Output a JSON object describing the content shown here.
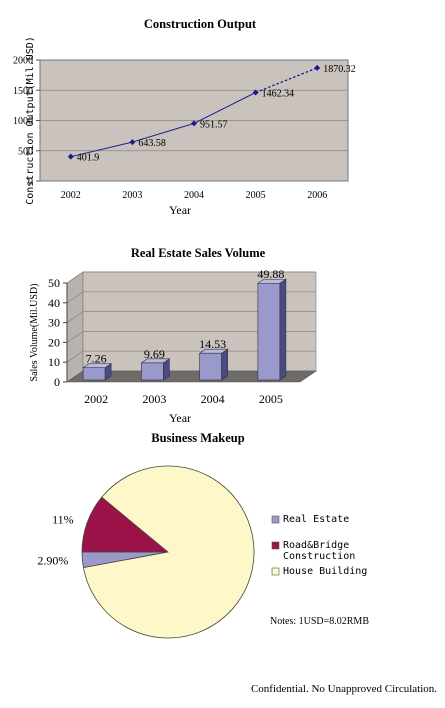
{
  "chart_data": [
    {
      "type": "line",
      "title": "Construction Output",
      "xlabel": "Year",
      "ylabel": "Construction Output(Mil.USD)",
      "categories": [
        "2002",
        "2003",
        "2004",
        "2005",
        "2006"
      ],
      "values": [
        401.9,
        643.58,
        951.57,
        1462.34,
        1870.32
      ],
      "data_labels": [
        "401.9",
        "643.58",
        "951.57",
        "1462.34",
        "1870.32"
      ],
      "y_ticks": [
        "0",
        "500",
        "1000",
        "1500",
        "2000"
      ],
      "ylim": [
        0,
        2000
      ],
      "grid": true,
      "last_segment_dashed": true,
      "line_color": "#1a1a8c",
      "plot_bg": "#c9c2bd"
    },
    {
      "type": "bar",
      "title": "Real Estate Sales Volume",
      "xlabel": "Year",
      "ylabel": "Sales Volume(Mil.USD)",
      "categories": [
        "2002",
        "2003",
        "2004",
        "2005"
      ],
      "values": [
        7.26,
        9.69,
        14.53,
        49.88
      ],
      "data_labels": [
        "7.26",
        "9.69",
        "14.53",
        "49.88"
      ],
      "y_ticks": [
        "0",
        "10",
        "20",
        "30",
        "40",
        "50"
      ],
      "ylim": [
        0,
        50
      ],
      "grid": true,
      "style": "3d",
      "bar_color": "#9999cc",
      "plot_bg": "#c9c2bd"
    },
    {
      "type": "pie",
      "title": "Business Makeup",
      "slices": [
        {
          "label": "Real Estate",
          "value": 2.9,
          "display": "2.90%",
          "color": "#9a9ac8"
        },
        {
          "label": "Road&Bridge Construction",
          "value": 11,
          "display": "11%",
          "color": "#9a1248"
        },
        {
          "label": "House Building",
          "value": 86.1,
          "display": "",
          "color": "#fdf7c9"
        }
      ],
      "legend": {
        "placement": "right",
        "entries": [
          {
            "line1": "Real Estate",
            "line2": ""
          },
          {
            "line1": "Road&Bridge",
            "line2": "Construction"
          },
          {
            "line1": "House Building",
            "line2": ""
          }
        ]
      },
      "note": "Notes: 1USD=8.02RMB"
    }
  ],
  "footer": "Confidential. No Unapproved Circulation."
}
